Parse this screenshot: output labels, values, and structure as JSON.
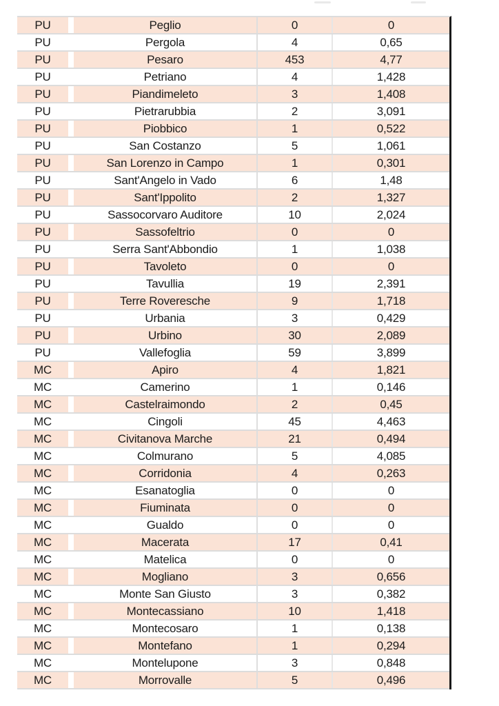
{
  "colors": {
    "row_shade": "#fbe3d6",
    "gridline": "#dcdcdc",
    "heavy_right_border": "#1a1a1a",
    "text": "#1b1b1b"
  },
  "table": {
    "columns": [
      "province_code",
      "municipality",
      "count",
      "rate"
    ],
    "rows": [
      {
        "province": "PU",
        "municipality": "Peglio",
        "count": "0",
        "rate": "0"
      },
      {
        "province": "PU",
        "municipality": "Pergola",
        "count": "4",
        "rate": "0,65"
      },
      {
        "province": "PU",
        "municipality": "Pesaro",
        "count": "453",
        "rate": "4,77"
      },
      {
        "province": "PU",
        "municipality": "Petriano",
        "count": "4",
        "rate": "1,428"
      },
      {
        "province": "PU",
        "municipality": "Piandimeleto",
        "count": "3",
        "rate": "1,408"
      },
      {
        "province": "PU",
        "municipality": "Pietrarubbia",
        "count": "2",
        "rate": "3,091"
      },
      {
        "province": "PU",
        "municipality": "Piobbico",
        "count": "1",
        "rate": "0,522"
      },
      {
        "province": "PU",
        "municipality": "San Costanzo",
        "count": "5",
        "rate": "1,061"
      },
      {
        "province": "PU",
        "municipality": "San Lorenzo in Campo",
        "count": "1",
        "rate": "0,301"
      },
      {
        "province": "PU",
        "municipality": "Sant'Angelo in Vado",
        "count": "6",
        "rate": "1,48"
      },
      {
        "province": "PU",
        "municipality": "Sant'Ippolito",
        "count": "2",
        "rate": "1,327"
      },
      {
        "province": "PU",
        "municipality": "Sassocorvaro Auditore",
        "count": "10",
        "rate": "2,024"
      },
      {
        "province": "PU",
        "municipality": "Sassofeltrio",
        "count": "0",
        "rate": "0"
      },
      {
        "province": "PU",
        "municipality": "Serra Sant'Abbondio",
        "count": "1",
        "rate": "1,038"
      },
      {
        "province": "PU",
        "municipality": "Tavoleto",
        "count": "0",
        "rate": "0"
      },
      {
        "province": "PU",
        "municipality": "Tavullia",
        "count": "19",
        "rate": "2,391"
      },
      {
        "province": "PU",
        "municipality": "Terre Roveresche",
        "count": "9",
        "rate": "1,718"
      },
      {
        "province": "PU",
        "municipality": "Urbania",
        "count": "3",
        "rate": "0,429"
      },
      {
        "province": "PU",
        "municipality": "Urbino",
        "count": "30",
        "rate": "2,089"
      },
      {
        "province": "PU",
        "municipality": "Vallefoglia",
        "count": "59",
        "rate": "3,899"
      },
      {
        "province": "MC",
        "municipality": "Apiro",
        "count": "4",
        "rate": "1,821"
      },
      {
        "province": "MC",
        "municipality": "Camerino",
        "count": "1",
        "rate": "0,146"
      },
      {
        "province": "MC",
        "municipality": "Castelraimondo",
        "count": "2",
        "rate": "0,45"
      },
      {
        "province": "MC",
        "municipality": "Cingoli",
        "count": "45",
        "rate": "4,463"
      },
      {
        "province": "MC",
        "municipality": "Civitanova Marche",
        "count": "21",
        "rate": "0,494"
      },
      {
        "province": "MC",
        "municipality": "Colmurano",
        "count": "5",
        "rate": "4,085"
      },
      {
        "province": "MC",
        "municipality": "Corridonia",
        "count": "4",
        "rate": "0,263"
      },
      {
        "province": "MC",
        "municipality": "Esanatoglia",
        "count": "0",
        "rate": "0"
      },
      {
        "province": "MC",
        "municipality": "Fiuminata",
        "count": "0",
        "rate": "0"
      },
      {
        "province": "MC",
        "municipality": "Gualdo",
        "count": "0",
        "rate": "0"
      },
      {
        "province": "MC",
        "municipality": "Macerata",
        "count": "17",
        "rate": "0,41"
      },
      {
        "province": "MC",
        "municipality": "Matelica",
        "count": "0",
        "rate": "0"
      },
      {
        "province": "MC",
        "municipality": "Mogliano",
        "count": "3",
        "rate": "0,656"
      },
      {
        "province": "MC",
        "municipality": "Monte San Giusto",
        "count": "3",
        "rate": "0,382"
      },
      {
        "province": "MC",
        "municipality": "Montecassiano",
        "count": "10",
        "rate": "1,418"
      },
      {
        "province": "MC",
        "municipality": "Montecosaro",
        "count": "1",
        "rate": "0,138"
      },
      {
        "province": "MC",
        "municipality": "Montefano",
        "count": "1",
        "rate": "0,294"
      },
      {
        "province": "MC",
        "municipality": "Montelupone",
        "count": "3",
        "rate": "0,848"
      },
      {
        "province": "MC",
        "municipality": "Morrovalle",
        "count": "5",
        "rate": "0,496"
      }
    ]
  }
}
